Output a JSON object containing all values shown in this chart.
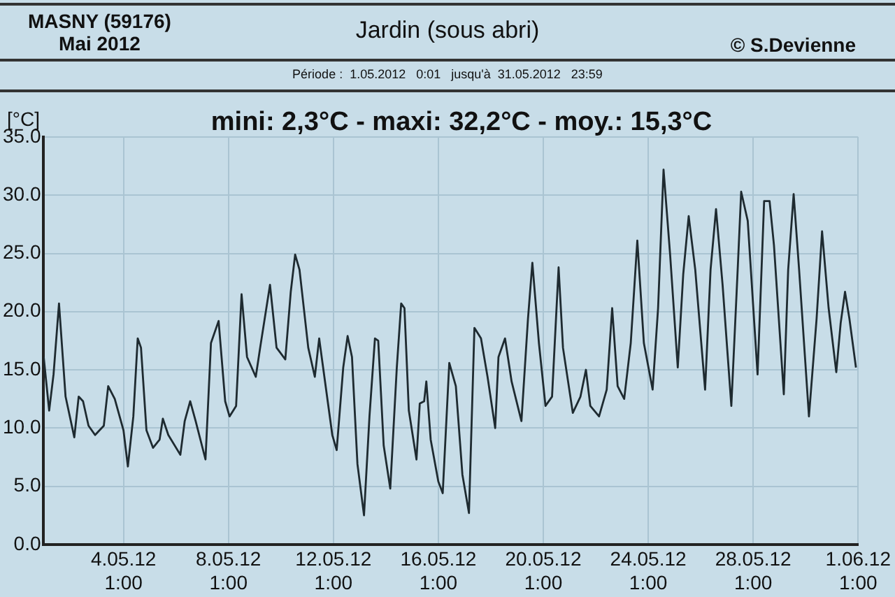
{
  "chart_data": {
    "type": "line",
    "title": "Jardin (sous abri)",
    "subtitle": "Période :  1.05.2012   0:01   jusqu'à  31.05.2012   23:59",
    "ylabel": "[°C]",
    "annotations": [
      "MASNY (59176)",
      "Mai 2012",
      "© S.Devienne",
      "mini: 2,3°C - maxi: 32,2°C - moy.: 15,3°C"
    ],
    "xlim": [
      "2012-05-01T00:00",
      "2012-06-01T01:00"
    ],
    "xticks": [
      {
        "value": "2012-05-04T01:00",
        "label": "4.05.12 1:00"
      },
      {
        "value": "2012-05-08T01:00",
        "label": "8.05.12 1:00"
      },
      {
        "value": "2012-05-12T01:00",
        "label": "12.05.12 1:00"
      },
      {
        "value": "2012-05-16T01:00",
        "label": "16.05.12 1:00"
      },
      {
        "value": "2012-05-20T01:00",
        "label": "20.05.12 1:00"
      },
      {
        "value": "2012-05-24T01:00",
        "label": "24.05.12 1:00"
      },
      {
        "value": "2012-05-28T01:00",
        "label": "28.05.12 1:00"
      },
      {
        "value": "2012-06-01T01:00",
        "label": "1.06.12 1:00"
      }
    ],
    "ylim": [
      0,
      35
    ],
    "yticks": [
      {
        "value": 0,
        "label": "0.0"
      },
      {
        "value": 5,
        "label": "5.0"
      },
      {
        "value": 10,
        "label": "10.0"
      },
      {
        "value": 15,
        "label": "15.0"
      },
      {
        "value": 20,
        "label": "20.0"
      },
      {
        "value": 25,
        "label": "25.0"
      },
      {
        "value": 30,
        "label": "30.0"
      },
      {
        "value": 35,
        "label": "35.0"
      }
    ],
    "grid": true,
    "marker": "none",
    "line_style": "solid",
    "series": [
      {
        "color": "#1e2a30",
        "x": [
          "2012-05-01T00:00",
          "2012-05-01T05:00",
          "2012-05-01T09:00",
          "2012-05-01T14:00",
          "2012-05-01T20:00",
          "2012-05-02T04:00",
          "2012-05-02T08:00",
          "2012-05-02T12:00",
          "2012-05-02T17:00",
          "2012-05-02T23:00",
          "2012-05-03T07:00",
          "2012-05-03T11:00",
          "2012-05-03T17:00",
          "2012-05-04T01:00",
          "2012-05-04T05:00",
          "2012-05-04T10:00",
          "2012-05-04T14:00",
          "2012-05-04T17:00",
          "2012-05-04T22:00",
          "2012-05-05T04:00",
          "2012-05-05T10:00",
          "2012-05-05T13:00",
          "2012-05-05T18:00",
          "2012-05-06T05:00",
          "2012-05-06T09:00",
          "2012-05-06T14:00",
          "2012-05-06T19:00",
          "2012-05-07T04:00",
          "2012-05-07T09:00",
          "2012-05-07T16:00",
          "2012-05-07T22:00",
          "2012-05-08T02:00",
          "2012-05-08T08:00",
          "2012-05-08T13:00",
          "2012-05-08T18:00",
          "2012-05-09T02:00",
          "2012-05-09T06:00",
          "2012-05-09T15:00",
          "2012-05-09T21:00",
          "2012-05-10T05:00",
          "2012-05-10T10:00",
          "2012-05-10T14:00",
          "2012-05-10T18:00",
          "2012-05-11T02:00",
          "2012-05-11T08:00",
          "2012-05-11T12:00",
          "2012-05-11T15:00",
          "2012-05-12T00:00",
          "2012-05-12T04:00",
          "2012-05-12T10:00",
          "2012-05-12T14:00",
          "2012-05-12T18:00",
          "2012-05-12T23:00",
          "2012-05-13T05:00",
          "2012-05-13T10:00",
          "2012-05-13T15:00",
          "2012-05-13T18:00",
          "2012-05-13T23:00",
          "2012-05-14T05:00",
          "2012-05-14T11:00",
          "2012-05-14T15:00",
          "2012-05-14T18:00",
          "2012-05-14T22:00",
          "2012-05-15T05:00",
          "2012-05-15T08:00",
          "2012-05-15T12:00",
          "2012-05-15T14:00",
          "2012-05-15T18:00",
          "2012-05-16T01:00",
          "2012-05-16T05:00",
          "2012-05-16T11:00",
          "2012-05-16T17:00",
          "2012-05-16T23:00",
          "2012-05-17T05:00",
          "2012-05-17T10:00",
          "2012-05-17T16:00",
          "2012-05-17T22:00",
          "2012-05-18T05:00",
          "2012-05-18T08:00",
          "2012-05-18T14:00",
          "2012-05-18T20:00",
          "2012-05-19T05:00",
          "2012-05-19T11:00",
          "2012-05-19T15:00",
          "2012-05-19T21:00",
          "2012-05-20T03:00",
          "2012-05-20T09:00",
          "2012-05-20T15:00",
          "2012-05-20T19:00",
          "2012-05-21T04:00",
          "2012-05-21T11:00",
          "2012-05-21T16:00",
          "2012-05-21T20:00",
          "2012-05-22T04:00",
          "2012-05-22T11:00",
          "2012-05-22T16:00",
          "2012-05-22T21:00",
          "2012-05-23T03:00",
          "2012-05-23T09:00",
          "2012-05-23T15:00",
          "2012-05-23T21:00",
          "2012-05-24T05:00",
          "2012-05-24T10:00",
          "2012-05-24T15:00",
          "2012-05-24T21:00",
          "2012-05-25T04:00",
          "2012-05-25T09:00",
          "2012-05-25T14:00",
          "2012-05-25T20:00",
          "2012-05-26T05:00",
          "2012-05-26T10:00",
          "2012-05-26T15:00",
          "2012-05-26T21:00",
          "2012-05-27T05:00",
          "2012-05-27T11:00",
          "2012-05-27T14:00",
          "2012-05-27T20:00",
          "2012-05-28T05:00",
          "2012-05-28T11:00",
          "2012-05-28T16:00",
          "2012-05-28T20:00",
          "2012-05-29T05:00",
          "2012-05-29T09:00",
          "2012-05-29T14:00",
          "2012-05-29T19:00",
          "2012-05-30T04:00",
          "2012-05-30T11:00",
          "2012-05-30T16:00",
          "2012-05-30T22:00",
          "2012-05-31T05:00",
          "2012-05-31T09:00",
          "2012-05-31T13:00",
          "2012-05-31T17:00",
          "2012-05-31T23:00"
        ],
        "values": [
          16.1,
          11.5,
          14.6,
          20.7,
          12.7,
          9.2,
          12.7,
          12.3,
          10.2,
          9.4,
          10.2,
          13.6,
          12.5,
          9.8,
          6.7,
          11.0,
          17.7,
          16.9,
          9.8,
          8.3,
          9.0,
          10.8,
          9.4,
          7.7,
          10.6,
          12.3,
          10.6,
          7.3,
          17.3,
          19.2,
          12.3,
          11.0,
          11.9,
          21.5,
          16.1,
          14.4,
          16.9,
          22.3,
          16.9,
          15.9,
          21.7,
          24.9,
          23.6,
          16.9,
          14.4,
          17.7,
          15.6,
          9.4,
          8.1,
          15.2,
          17.9,
          16.1,
          6.9,
          2.5,
          11.0,
          17.7,
          17.5,
          8.5,
          4.8,
          15.2,
          20.7,
          20.3,
          11.5,
          7.3,
          12.1,
          12.3,
          14.0,
          9.0,
          5.4,
          4.4,
          15.6,
          13.6,
          6.0,
          2.7,
          18.6,
          17.7,
          14.4,
          10.0,
          16.1,
          17.7,
          14.0,
          10.6,
          19.4,
          24.2,
          17.3,
          11.9,
          12.7,
          23.8,
          16.9,
          11.3,
          12.7,
          15.0,
          11.9,
          11.0,
          13.3,
          20.3,
          13.6,
          12.5,
          17.3,
          26.1,
          17.3,
          13.3,
          20.3,
          32.2,
          24.9,
          15.2,
          23.2,
          28.2,
          23.6,
          13.3,
          23.6,
          28.8,
          22.3,
          11.9,
          24.0,
          30.3,
          27.8,
          14.6,
          29.5,
          29.5,
          25.7,
          12.9,
          23.6,
          30.1,
          23.6,
          11.0,
          19.4,
          26.9,
          20.3,
          14.8,
          19.0,
          21.7,
          19.4,
          15.2
        ]
      }
    ]
  }
}
